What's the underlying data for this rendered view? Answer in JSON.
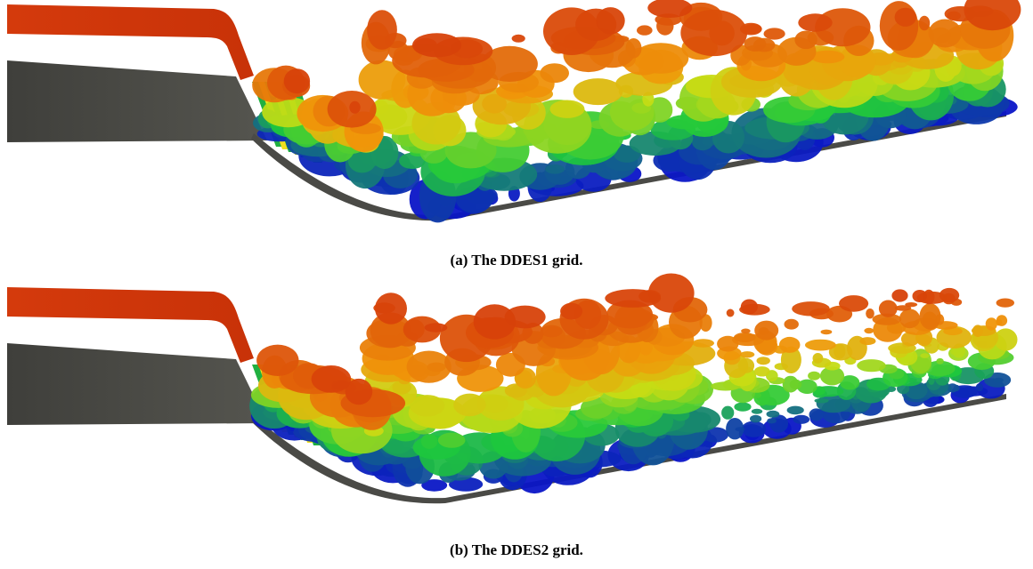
{
  "panels": [
    {
      "caption": "(a) The DDES1 grid."
    },
    {
      "caption": "(b) The DDES2 grid."
    }
  ]
}
